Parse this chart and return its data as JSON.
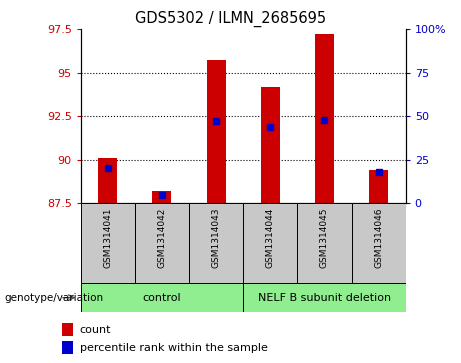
{
  "title": "GDS5302 / ILMN_2685695",
  "samples": [
    "GSM1314041",
    "GSM1314042",
    "GSM1314043",
    "GSM1314044",
    "GSM1314045",
    "GSM1314046"
  ],
  "red_values": [
    90.1,
    88.2,
    95.7,
    94.2,
    97.2,
    89.4
  ],
  "blue_percentiles": [
    20,
    5,
    47,
    44,
    48,
    18
  ],
  "ylim_left": [
    87.5,
    97.5
  ],
  "ylim_right": [
    0,
    100
  ],
  "left_ticks": [
    87.5,
    90.0,
    92.5,
    95.0,
    97.5
  ],
  "right_ticks": [
    0,
    25,
    50,
    75,
    100
  ],
  "left_tick_labels": [
    "87.5",
    "90",
    "92.5",
    "95",
    "97.5"
  ],
  "right_tick_labels": [
    "0",
    "25",
    "50",
    "75",
    "100%"
  ],
  "groups": [
    {
      "label": "control",
      "color": "#90EE90",
      "start": 0,
      "end": 3
    },
    {
      "label": "NELF B subunit deletion",
      "color": "#90EE90",
      "start": 3,
      "end": 6
    }
  ],
  "bar_color": "#cc0000",
  "dot_color": "#0000cc",
  "bg_color": "#c8c8c8",
  "label_color_left": "#cc0000",
  "label_color_right": "#0000cc",
  "genotype_label": "genotype/variation",
  "legend_count": "count",
  "legend_percentile": "percentile rank within the sample",
  "bar_width": 0.35,
  "dot_size": 4
}
